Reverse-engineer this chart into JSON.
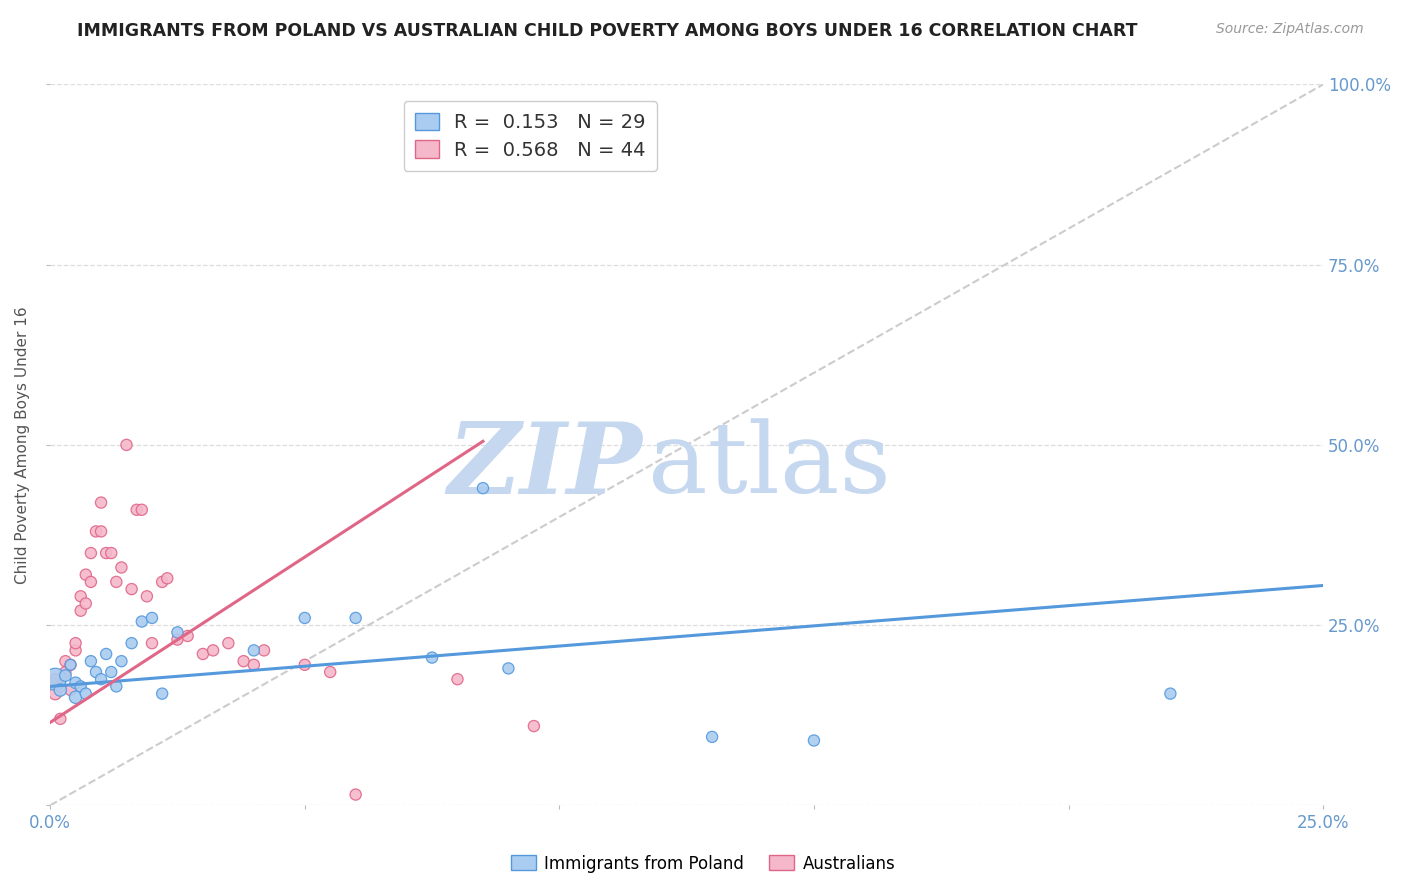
{
  "title": "IMMIGRANTS FROM POLAND VS AUSTRALIAN CHILD POVERTY AMONG BOYS UNDER 16 CORRELATION CHART",
  "source": "Source: ZipAtlas.com",
  "ylabel": "Child Poverty Among Boys Under 16",
  "xlim": [
    0.0,
    0.25
  ],
  "ylim": [
    0.0,
    1.0
  ],
  "xticks": [
    0.0,
    0.05,
    0.1,
    0.15,
    0.2,
    0.25
  ],
  "yticks": [
    0.0,
    0.25,
    0.5,
    0.75,
    1.0
  ],
  "xtick_labels": [
    "0.0%",
    "",
    "",
    "",
    "",
    "25.0%"
  ],
  "right_ytick_labels": [
    "",
    "25.0%",
    "50.0%",
    "75.0%",
    "100.0%"
  ],
  "blue_fill": "#aaccf0",
  "pink_fill": "#f5b8cb",
  "blue_edge": "#5599dd",
  "pink_edge": "#e06688",
  "diagonal_color": "#cccccc",
  "R_blue": 0.153,
  "N_blue": 29,
  "R_pink": 0.568,
  "N_pink": 44,
  "blue_scatter_x": [
    0.001,
    0.002,
    0.003,
    0.004,
    0.005,
    0.005,
    0.006,
    0.007,
    0.008,
    0.009,
    0.01,
    0.011,
    0.012,
    0.013,
    0.014,
    0.016,
    0.018,
    0.02,
    0.022,
    0.025,
    0.04,
    0.05,
    0.06,
    0.075,
    0.085,
    0.09,
    0.13,
    0.15,
    0.22
  ],
  "blue_scatter_y": [
    0.175,
    0.16,
    0.18,
    0.195,
    0.15,
    0.17,
    0.165,
    0.155,
    0.2,
    0.185,
    0.175,
    0.21,
    0.185,
    0.165,
    0.2,
    0.225,
    0.255,
    0.26,
    0.155,
    0.24,
    0.215,
    0.26,
    0.26,
    0.205,
    0.44,
    0.19,
    0.095,
    0.09,
    0.155
  ],
  "blue_scatter_size": [
    250,
    80,
    70,
    60,
    80,
    70,
    65,
    65,
    65,
    65,
    65,
    65,
    65,
    65,
    65,
    65,
    65,
    65,
    65,
    65,
    65,
    65,
    65,
    65,
    65,
    65,
    65,
    65,
    65
  ],
  "pink_scatter_x": [
    0.001,
    0.001,
    0.002,
    0.002,
    0.003,
    0.003,
    0.004,
    0.004,
    0.005,
    0.005,
    0.006,
    0.006,
    0.007,
    0.007,
    0.008,
    0.008,
    0.009,
    0.01,
    0.01,
    0.011,
    0.012,
    0.013,
    0.014,
    0.015,
    0.016,
    0.017,
    0.018,
    0.019,
    0.02,
    0.022,
    0.023,
    0.025,
    0.027,
    0.03,
    0.032,
    0.035,
    0.038,
    0.04,
    0.042,
    0.05,
    0.055,
    0.06,
    0.08,
    0.095
  ],
  "pink_scatter_y": [
    0.155,
    0.175,
    0.12,
    0.165,
    0.185,
    0.2,
    0.16,
    0.195,
    0.215,
    0.225,
    0.27,
    0.29,
    0.32,
    0.28,
    0.35,
    0.31,
    0.38,
    0.42,
    0.38,
    0.35,
    0.35,
    0.31,
    0.33,
    0.5,
    0.3,
    0.41,
    0.41,
    0.29,
    0.225,
    0.31,
    0.315,
    0.23,
    0.235,
    0.21,
    0.215,
    0.225,
    0.2,
    0.195,
    0.215,
    0.195,
    0.185,
    0.015,
    0.175,
    0.11
  ],
  "pink_scatter_size": [
    80,
    65,
    65,
    65,
    65,
    65,
    65,
    65,
    65,
    65,
    65,
    65,
    65,
    65,
    65,
    65,
    65,
    65,
    65,
    65,
    65,
    65,
    65,
    65,
    65,
    65,
    65,
    65,
    65,
    65,
    65,
    65,
    65,
    65,
    65,
    65,
    65,
    65,
    65,
    65,
    65,
    65,
    65,
    65
  ],
  "blue_line_x": [
    0.0,
    0.25
  ],
  "blue_line_y": [
    0.165,
    0.305
  ],
  "pink_line_x": [
    0.0,
    0.085
  ],
  "pink_line_y": [
    0.115,
    0.505
  ],
  "title_color": "#222222",
  "axis_label_color": "#555555",
  "tick_color": "#6699cc",
  "grid_color": "#dddddd",
  "background_color": "#ffffff",
  "watermark_zip_color": "#c5d8f0",
  "watermark_atlas_color": "#c5d8f0"
}
